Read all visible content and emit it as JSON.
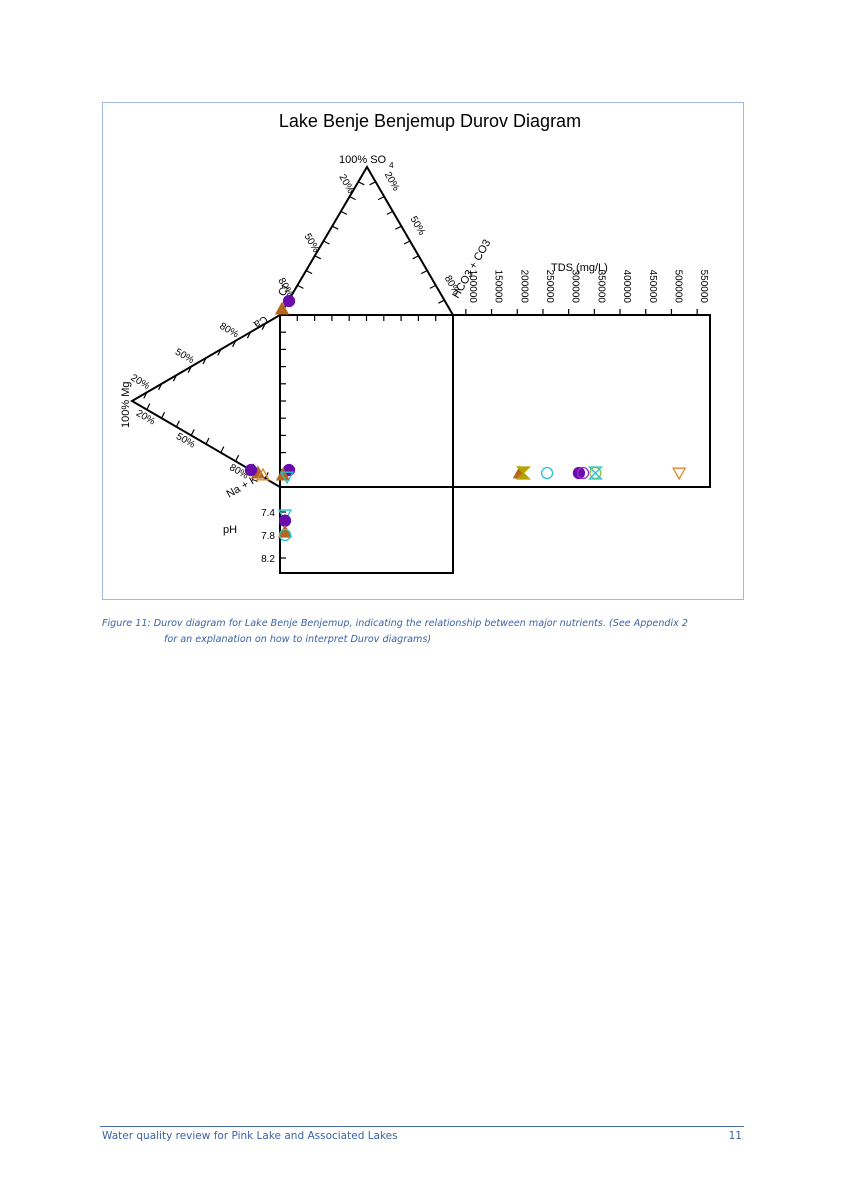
{
  "chart_data": {
    "type": "scatter",
    "diagram": "Durov",
    "title": "Lake Benje Benjemup Durov Diagram",
    "cation_triangle": {
      "apex_label": "100% Mg",
      "top_label": "Ca",
      "bottom_label": "Na + K",
      "tick_labels_upper": [
        "80%",
        "50%",
        "20%"
      ],
      "tick_labels_lower": [
        "20%",
        "50%",
        "80%"
      ]
    },
    "anion_triangle": {
      "apex_label": "100% SO4",
      "left_label": "Cl",
      "right_label": "HCO3 + CO3",
      "tick_labels_left": [
        "80%",
        "50%",
        "20%"
      ],
      "tick_labels_right": [
        "20%",
        "50%",
        "80%"
      ]
    },
    "tds_axis": {
      "label": "TDS (mg/L)",
      "ticks": [
        "100000",
        "150000",
        "200000",
        "250000",
        "300000",
        "350000",
        "400000",
        "450000",
        "500000",
        "550000"
      ]
    },
    "ph_axis": {
      "label": "pH",
      "ticks": [
        "7.4",
        "7.8",
        "8.2"
      ]
    },
    "tds_points": [
      {
        "tds": 205000,
        "symbol": "triangle-up",
        "color": "#b5651d",
        "filled": true
      },
      {
        "tds": 212000,
        "symbol": "hourglass",
        "color": "#b5a300",
        "filled": true
      },
      {
        "tds": 258000,
        "symbol": "circle",
        "color": "#29c4c9",
        "filled": false
      },
      {
        "tds": 320000,
        "symbol": "circle",
        "color": "#6a0dad",
        "filled": true
      },
      {
        "tds": 328000,
        "symbol": "circle",
        "color": "#9b30d9",
        "filled": false
      },
      {
        "tds": 352000,
        "symbol": "circle",
        "color": "#8bc34a",
        "filled": false
      },
      {
        "tds": 352000,
        "symbol": "hourglass",
        "color": "#29c4c9",
        "filled": false
      },
      {
        "tds": 515000,
        "symbol": "triangle-down",
        "color": "#d88a2b",
        "filled": false
      }
    ],
    "ph_points": [
      {
        "ph": 7.45,
        "symbol": "triangle-down",
        "color": "#29c4c9",
        "filled": false
      },
      {
        "ph": 7.55,
        "symbol": "circle",
        "color": "#6a0dad",
        "filled": true
      },
      {
        "ph": 7.75,
        "symbol": "triangle-up",
        "color": "#b5651d",
        "filled": true
      },
      {
        "ph": 7.8,
        "symbol": "circle",
        "color": "#29c4c9",
        "filled": false
      }
    ]
  },
  "caption": {
    "line1": "Figure 11: Durov diagram for Lake Benje Benjemup, indicating the relationship between major nutrients. (See Appendix 2",
    "line2": "for an explanation on how to interpret Durov diagrams)"
  },
  "footer": {
    "title": "Water quality review for Pink Lake and Associated Lakes",
    "page": "11"
  }
}
